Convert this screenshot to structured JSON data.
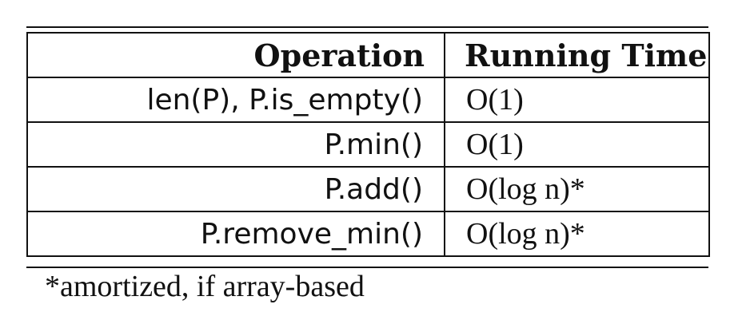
{
  "table": {
    "headers": {
      "operation": "Operation",
      "running_time": "Running Time"
    },
    "rows": [
      {
        "operation": "len(P), P.is_empty()",
        "running_time": "O(1)"
      },
      {
        "operation": "P.min()",
        "running_time": "O(1)"
      },
      {
        "operation": "P.add()",
        "running_time": "O(log n)*"
      },
      {
        "operation": "P.remove_min()",
        "running_time": "O(log n)*"
      }
    ]
  },
  "footnote": "*amortized, if array-based"
}
